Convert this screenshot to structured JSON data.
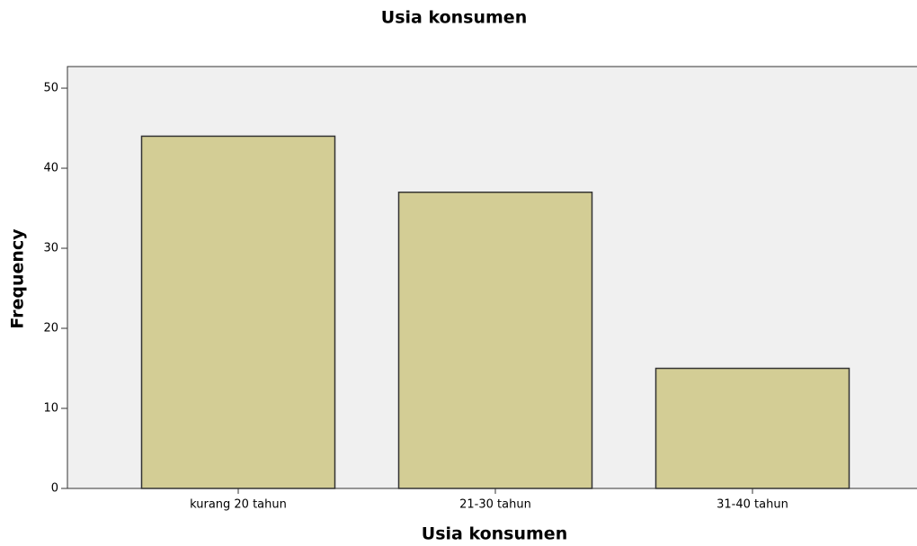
{
  "chart_data": {
    "type": "bar",
    "title": "Usia konsumen",
    "x_label": "Usia konsumen",
    "y_label": "Frequency",
    "categories": [
      "kurang 20 tahun",
      "21-30 tahun",
      "31-40 tahun"
    ],
    "values": [
      44,
      37,
      15
    ],
    "color": "#d3cd95",
    "ylim": [
      0,
      52.7
    ],
    "yticks": [
      0,
      10,
      20,
      30,
      40,
      50
    ],
    "grid": false
  }
}
